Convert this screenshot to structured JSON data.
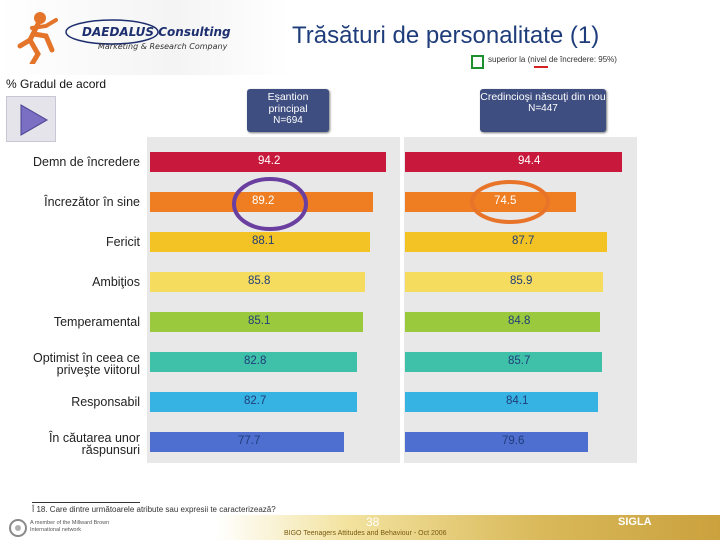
{
  "header": {
    "brand_name": "DAEDALUS Consulting",
    "brand_tagline": "Marketing & Research Company",
    "title": "Trăsături de personalitate (1)",
    "significance_note": "superior la (nivel de încredere: 95%)"
  },
  "measure_label": "% Gradul de acord",
  "icons": {
    "play": "play-triangle-icon",
    "runner": "runner-logo-icon",
    "significance_box": "green-square-icon",
    "network_logo": "network-logo-icon"
  },
  "colors": {
    "header_box": "#3e4e80",
    "highlight_circle_left": "#6b3fa0",
    "highlight_circle_right": "#e8742a",
    "significance_box": "#1c8f2e",
    "significance_mark": "#d42020"
  },
  "chart_data": {
    "type": "bar",
    "orientation": "horizontal",
    "categories": [
      "Demn de încredere",
      "Încrezător în sine",
      "Fericit",
      "Ambiţios",
      "Temperamental",
      "Optimist în ceea ce priveşte viitorul",
      "Responsabil",
      "În căutarea unor răspunsuri"
    ],
    "category_colors": [
      "#c8193c",
      "#ef7d22",
      "#f3c326",
      "#f5dc5f",
      "#9bc93e",
      "#3fc0a9",
      "#37b3e3",
      "#4f6fd0"
    ],
    "series": [
      {
        "name": "Eşantion principal",
        "sample": "N=694",
        "values": [
          94.2,
          89.2,
          88.1,
          85.8,
          85.1,
          82.8,
          82.7,
          77.7
        ],
        "value_labels": [
          "94.2",
          "89.2",
          "88.1",
          "85.8",
          "85.1",
          "82.8",
          "82.7",
          "77.7"
        ]
      },
      {
        "name": "Credincioşi născuţi din nou",
        "sample": "N=447",
        "values": [
          94.4,
          74.5,
          87.7,
          85.9,
          84.8,
          85.7,
          84.1,
          79.6
        ],
        "value_labels": [
          "94.4",
          "74.5",
          "87.7",
          "85.9",
          "84.8",
          "85.7",
          "84.1",
          "79.6"
        ]
      }
    ],
    "highlighted": [
      {
        "series": 0,
        "category": 1
      },
      {
        "series": 1,
        "category": 1
      }
    ],
    "xlim": [
      0,
      100
    ],
    "grid": false,
    "legend": "none"
  },
  "footnote": "Î 18. Care dintre următoarele atribute sau expresii te caracterizează?",
  "footer": {
    "page_number": "38",
    "study": "BIGO Teenagers Attitudes and Behaviour - Oct 2006",
    "network": "A member of the Millward Brown International network",
    "brand_right": "SIGLA"
  }
}
